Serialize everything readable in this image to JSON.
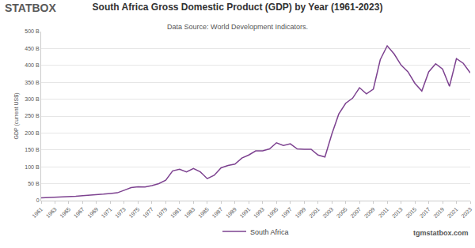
{
  "chart_data": {
    "type": "line",
    "title": "South Africa Gross Domestic Product (GDP) by Year (1961-2023)",
    "subtitle": "Data Source: World Development Indicators.",
    "y_label": "GDP (current US$)",
    "annotations": [
      "STATBOX",
      "tgmstatbox.com"
    ],
    "x": [
      1961,
      1962,
      1963,
      1964,
      1965,
      1966,
      1967,
      1968,
      1969,
      1970,
      1971,
      1972,
      1973,
      1974,
      1975,
      1976,
      1977,
      1978,
      1979,
      1980,
      1981,
      1982,
      1983,
      1984,
      1985,
      1986,
      1987,
      1988,
      1989,
      1990,
      1991,
      1992,
      1993,
      1994,
      1995,
      1996,
      1997,
      1998,
      1999,
      2000,
      2001,
      2002,
      2003,
      2004,
      2005,
      2006,
      2007,
      2008,
      2009,
      2010,
      2011,
      2012,
      2013,
      2014,
      2015,
      2016,
      2017,
      2018,
      2019,
      2020,
      2021,
      2022,
      2023
    ],
    "series": [
      {
        "name": "South Africa",
        "color": "#7d4290",
        "values": [
          8.4,
          9.0,
          9.9,
          10.9,
          11.9,
          13.0,
          14.4,
          15.4,
          17.4,
          19.1,
          21.3,
          23.1,
          30.6,
          38.4,
          40.9,
          40.4,
          44.6,
          50.3,
          60.2,
          88,
          93,
          85,
          95,
          85,
          65,
          75,
          97,
          104,
          108,
          126,
          135,
          147,
          147,
          153,
          171,
          163,
          168,
          153,
          152,
          152,
          135,
          129,
          197,
          256,
          288,
          303,
          334,
          316,
          330,
          417,
          458,
          434,
          401,
          381,
          347,
          324,
          381,
          405,
          389,
          338,
          420,
          406,
          378
        ]
      }
    ],
    "xlim": [
      1961,
      2023
    ],
    "xticks": [
      1961,
      1963,
      1965,
      1967,
      1969,
      1971,
      1973,
      1975,
      1977,
      1979,
      1981,
      1983,
      1985,
      1987,
      1989,
      1991,
      1993,
      1995,
      1997,
      1999,
      2001,
      2003,
      2005,
      2007,
      2009,
      2011,
      2013,
      2015,
      2017,
      2019,
      2021,
      2023
    ],
    "ylim": [
      0,
      500
    ],
    "yticks": [
      0,
      {
        "value": 50,
        "label": "50 B"
      },
      {
        "value": 100,
        "label": "100 B"
      },
      {
        "value": 150,
        "label": "150 B"
      },
      {
        "value": 200,
        "label": "200 B"
      },
      {
        "value": 250,
        "label": "250 B"
      },
      {
        "value": 300,
        "label": "300 B"
      },
      {
        "value": 350,
        "label": "350 B"
      },
      {
        "value": 400,
        "label": "400 B"
      },
      {
        "value": 450,
        "label": "450 B"
      },
      {
        "value": 500,
        "label": "500 B"
      }
    ],
    "grid": true,
    "legend": "bottom"
  }
}
